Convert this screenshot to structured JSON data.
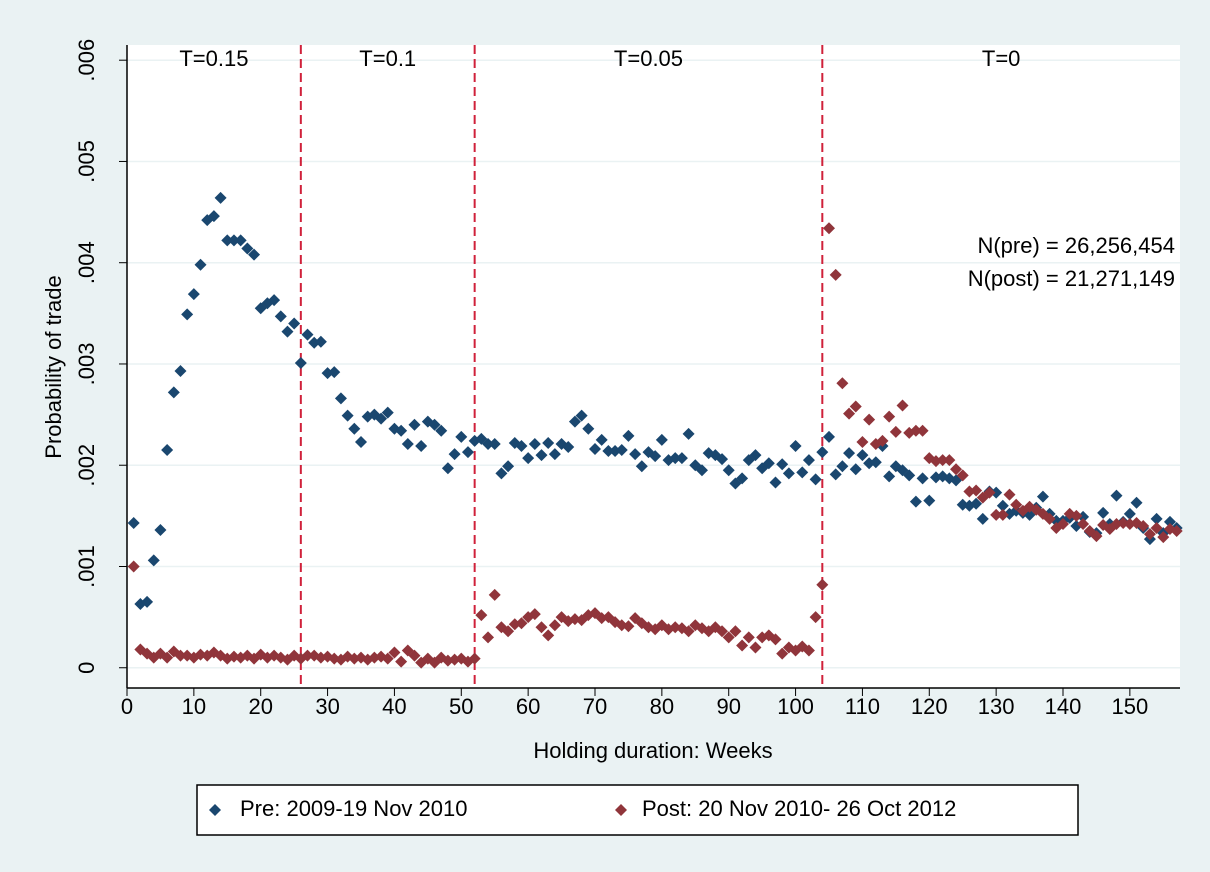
{
  "chart_data": {
    "type": "scatter",
    "ylabel": "Probability of trade",
    "xlabel": "Holding duration: Weeks",
    "xlim": [
      0,
      157.5
    ],
    "ylim": [
      -0.0002,
      0.00615
    ],
    "xticks": [
      0,
      10,
      20,
      30,
      40,
      50,
      60,
      70,
      80,
      90,
      100,
      110,
      120,
      130,
      140,
      150
    ],
    "yticks": [
      0,
      {
        "value": 0.001,
        "label": ".001"
      },
      {
        "value": 0.002,
        "label": ".002"
      },
      {
        "value": 0.003,
        "label": ".003"
      },
      {
        "value": 0.004,
        "label": ".004"
      },
      {
        "value": 0.005,
        "label": ".005"
      },
      {
        "value": 0.006,
        "label": ".006"
      }
    ],
    "grid": true,
    "vlines": [
      26,
      52,
      104
    ],
    "vline_color": "#d0213a",
    "regions": [
      "T=0.15",
      "T=0.1",
      "T=0.05",
      "T=0"
    ],
    "annotations": [
      "N(pre) = 26,256,454",
      "N(post) = 21,271,149"
    ],
    "legend": "bottom",
    "x": [
      1,
      2,
      3,
      4,
      5,
      6,
      7,
      8,
      9,
      10,
      11,
      12,
      13,
      14,
      15,
      16,
      17,
      18,
      19,
      20,
      21,
      22,
      23,
      24,
      25,
      26,
      27,
      28,
      29,
      30,
      31,
      32,
      33,
      34,
      35,
      36,
      37,
      38,
      39,
      40,
      41,
      42,
      43,
      44,
      45,
      46,
      47,
      48,
      49,
      50,
      51,
      52,
      53,
      54,
      55,
      56,
      57,
      58,
      59,
      60,
      61,
      62,
      63,
      64,
      65,
      66,
      67,
      68,
      69,
      70,
      71,
      72,
      73,
      74,
      75,
      76,
      77,
      78,
      79,
      80,
      81,
      82,
      83,
      84,
      85,
      86,
      87,
      88,
      89,
      90,
      91,
      92,
      93,
      94,
      95,
      96,
      97,
      98,
      99,
      100,
      101,
      102,
      103,
      104,
      105,
      106,
      107,
      108,
      109,
      110,
      111,
      112,
      113,
      114,
      115,
      116,
      117,
      118,
      119,
      120,
      121,
      122,
      123,
      124,
      125,
      126,
      127,
      128,
      129,
      130,
      131,
      132,
      133,
      134,
      135,
      136,
      137,
      138,
      139,
      140,
      141,
      142,
      143,
      144,
      145,
      146,
      147,
      148,
      149,
      150,
      151,
      152,
      153,
      154,
      155,
      156,
      157
    ],
    "series": [
      {
        "name": "Pre: 2009-19 Nov 2010",
        "color": "#1a476f",
        "values": [
          0.00143,
          0.00063,
          0.00065,
          0.00106,
          0.00136,
          0.00215,
          0.00272,
          0.00293,
          0.00349,
          0.00369,
          0.00398,
          0.00442,
          0.00446,
          0.00464,
          0.00422,
          0.00422,
          0.00422,
          0.00414,
          0.00408,
          0.00355,
          0.0036,
          0.00363,
          0.00347,
          0.00332,
          0.0034,
          0.00301,
          0.00329,
          0.00321,
          0.00322,
          0.00291,
          0.00292,
          0.00266,
          0.00249,
          0.00236,
          0.00223,
          0.00248,
          0.0025,
          0.00246,
          0.00252,
          0.00236,
          0.00234,
          0.00221,
          0.0024,
          0.00219,
          0.00243,
          0.0024,
          0.00234,
          0.00197,
          0.00211,
          0.00228,
          0.00213,
          0.00224,
          0.00226,
          0.00221,
          0.00221,
          0.00192,
          0.00199,
          0.00222,
          0.00219,
          0.00207,
          0.00221,
          0.0021,
          0.00222,
          0.00211,
          0.00221,
          0.00218,
          0.00243,
          0.00249,
          0.00236,
          0.00216,
          0.00225,
          0.00214,
          0.00214,
          0.00215,
          0.00229,
          0.00211,
          0.00199,
          0.00213,
          0.00209,
          0.00225,
          0.00205,
          0.00207,
          0.00207,
          0.00231,
          0.002,
          0.00195,
          0.00212,
          0.0021,
          0.00206,
          0.00195,
          0.00182,
          0.00187,
          0.00205,
          0.0021,
          0.00197,
          0.00202,
          0.00183,
          0.00201,
          0.00192,
          0.00219,
          0.00193,
          0.00205,
          0.00186,
          0.00213,
          0.00228,
          0.00191,
          0.00199,
          0.00212,
          0.00196,
          0.0021,
          0.00202,
          0.00203,
          0.00219,
          0.00189,
          0.00199,
          0.00195,
          0.0019,
          0.00164,
          0.00187,
          0.00165,
          0.00188,
          0.00189,
          0.00187,
          0.00185,
          0.00161,
          0.0016,
          0.00162,
          0.00147,
          0.00174,
          0.00173,
          0.0016,
          0.00152,
          0.00155,
          0.00153,
          0.00151,
          0.00158,
          0.00169,
          0.00152,
          0.00145,
          0.00145,
          0.00148,
          0.0014,
          0.00149,
          0.00134,
          0.00133,
          0.00153,
          0.00142,
          0.0017,
          0.00144,
          0.00152,
          0.00163,
          0.00138,
          0.00127,
          0.00147,
          0.00133,
          0.00144,
          0.00138
        ]
      },
      {
        "name": "Post: 20 Nov 2010- 26 Oct 2012",
        "color": "#90353b",
        "values": [
          0.001,
          0.00018,
          0.00014,
          0.0001,
          0.00014,
          0.0001,
          0.00016,
          0.00012,
          0.00012,
          0.0001,
          0.00013,
          0.00012,
          0.00015,
          0.00012,
          9e-05,
          0.00011,
          0.0001,
          0.00012,
          9e-05,
          0.00013,
          0.0001,
          0.00012,
          0.0001,
          8e-05,
          0.00012,
          9e-05,
          0.00012,
          0.00012,
          0.0001,
          0.00011,
          9e-05,
          8e-05,
          0.00011,
          9e-05,
          0.0001,
          8e-05,
          0.0001,
          0.00011,
          9e-05,
          0.00015,
          6e-05,
          0.00017,
          0.00012,
          5e-05,
          9e-05,
          5e-05,
          0.0001,
          7e-05,
          8e-05,
          9e-05,
          6e-05,
          9e-05,
          0.00052,
          0.0003,
          0.00072,
          0.0004,
          0.00036,
          0.00043,
          0.00044,
          0.0005,
          0.00053,
          0.0004,
          0.00032,
          0.00042,
          0.0005,
          0.00046,
          0.00048,
          0.00047,
          0.00052,
          0.00054,
          0.00049,
          0.0005,
          0.00045,
          0.00042,
          0.00041,
          0.00049,
          0.00044,
          0.0004,
          0.00038,
          0.00042,
          0.00038,
          0.0004,
          0.00039,
          0.00036,
          0.00042,
          0.00039,
          0.00036,
          0.0004,
          0.00036,
          0.0003,
          0.00036,
          0.00022,
          0.0003,
          0.0002,
          0.0003,
          0.00032,
          0.00028,
          0.00014,
          0.0002,
          0.00017,
          0.00021,
          0.00017,
          0.0005,
          0.00082,
          0.00434,
          0.00388,
          0.00281,
          0.00251,
          0.00258,
          0.00223,
          0.00245,
          0.00221,
          0.00224,
          0.00248,
          0.00233,
          0.00259,
          0.00232,
          0.00234,
          0.00234,
          0.00207,
          0.00204,
          0.00205,
          0.00205,
          0.00196,
          0.0019,
          0.00174,
          0.00175,
          0.00168,
          0.00173,
          0.00151,
          0.00151,
          0.00171,
          0.00161,
          0.00155,
          0.00159,
          0.00156,
          0.00152,
          0.00147,
          0.00138,
          0.00142,
          0.00152,
          0.0015,
          0.00142,
          0.00135,
          0.0013,
          0.00141,
          0.00137,
          0.00142,
          0.00143,
          0.00142,
          0.00143,
          0.0014,
          0.00132,
          0.00138,
          0.00129,
          0.00137,
          0.00135
        ]
      }
    ]
  }
}
